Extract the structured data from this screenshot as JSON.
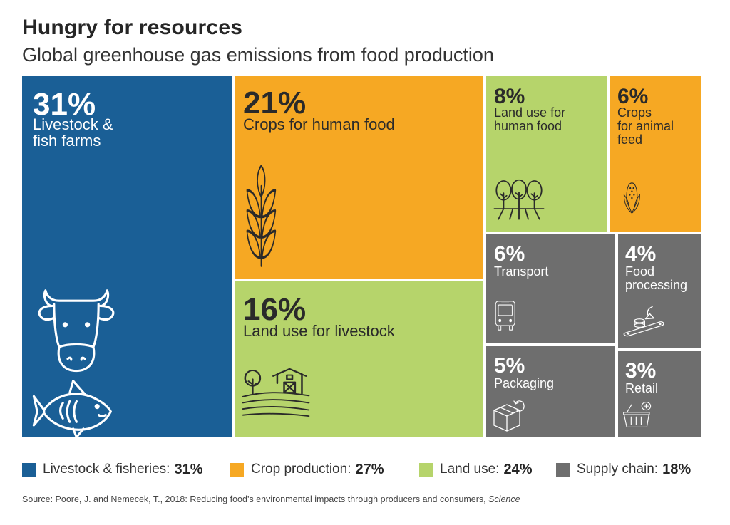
{
  "chart_data": {
    "type": "treemap",
    "title": "Hungry for resources",
    "subtitle": "Global greenhouse gas emissions from food production",
    "groups": [
      {
        "name": "Livestock & fisheries",
        "value": 31,
        "value_label": "31%",
        "color": "#1a5f96"
      },
      {
        "name": "Crop production",
        "value": 27,
        "value_label": "27%",
        "color": "#f6a823"
      },
      {
        "name": "Land use",
        "value": 24,
        "value_label": "24%",
        "color": "#b6d46b"
      },
      {
        "name": "Supply chain",
        "value": 18,
        "value_label": "18%",
        "color": "#6e6e6e"
      }
    ],
    "cells": [
      {
        "id": "livestock",
        "group": "Livestock & fisheries",
        "value": 31,
        "pct": "31%",
        "label": "Livestock &\nfish farms",
        "icons": [
          "cow-icon",
          "fish-icon"
        ]
      },
      {
        "id": "crops-human",
        "group": "Crop production",
        "value": 21,
        "pct": "21%",
        "label": "Crops for human food",
        "icons": [
          "wheat-icon"
        ]
      },
      {
        "id": "land-livestock",
        "group": "Land use",
        "value": 16,
        "pct": "16%",
        "label": "Land use for livestock",
        "icons": [
          "farm-barn-icon"
        ]
      },
      {
        "id": "land-human",
        "group": "Land use",
        "value": 8,
        "pct": "8%",
        "label": "Land use for\nhuman food",
        "icons": [
          "trees-icon"
        ]
      },
      {
        "id": "crops-animal",
        "group": "Crop production",
        "value": 6,
        "pct": "6%",
        "label": "Crops\nfor animal\nfeed",
        "icons": [
          "corn-icon"
        ]
      },
      {
        "id": "transport",
        "group": "Supply chain",
        "value": 6,
        "pct": "6%",
        "label": "Transport",
        "icons": [
          "bus-icon"
        ]
      },
      {
        "id": "food-processing",
        "group": "Supply chain",
        "value": 4,
        "pct": "4%",
        "label": "Food\nprocessing",
        "icons": [
          "conveyor-icon"
        ]
      },
      {
        "id": "packaging",
        "group": "Supply chain",
        "value": 5,
        "pct": "5%",
        "label": "Packaging",
        "icons": [
          "package-icon"
        ]
      },
      {
        "id": "retail",
        "group": "Supply chain",
        "value": 3,
        "pct": "3%",
        "label": "Retail",
        "icons": [
          "basket-icon"
        ]
      }
    ],
    "legend_position": "bottom"
  },
  "source": {
    "text": "Source: Poore, J. and Nemecek, T., 2018: Reducing food’s environmental impacts through producers and consumers, ",
    "journal": "Science"
  }
}
